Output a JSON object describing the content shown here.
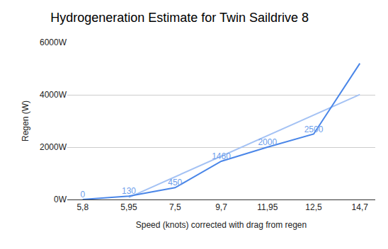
{
  "chart_data": {
    "type": "line",
    "title": "Hydrogeneration Estimate for Twin Saildrive 8",
    "x_label": "Speed (knots) corrected with drag from regen",
    "y_label": "Regen (W)",
    "categories": [
      "5,8",
      "5,95",
      "7,5",
      "9,7",
      "11,95",
      "12,5",
      "14,7"
    ],
    "series": [
      {
        "values": [
          0,
          130,
          450,
          1460,
          2000,
          2500,
          5200
        ],
        "value_labels": [
          "0",
          "130",
          "450",
          "1460",
          "2000",
          "2500",
          null
        ],
        "color": "#4a86e8"
      },
      {
        "values": [
          null,
          80,
          870,
          1650,
          2440,
          3230,
          4010
        ],
        "color": "#a4c2f4"
      }
    ],
    "ylim": [
      0,
      6000
    ],
    "yticks": [
      {
        "value": 0,
        "label": "0W"
      },
      {
        "value": 2000,
        "label": "2000W"
      },
      {
        "value": 4000,
        "label": "4000W"
      },
      {
        "value": 6000,
        "label": "6000W"
      }
    ],
    "grid": true,
    "data_labels": true
  }
}
